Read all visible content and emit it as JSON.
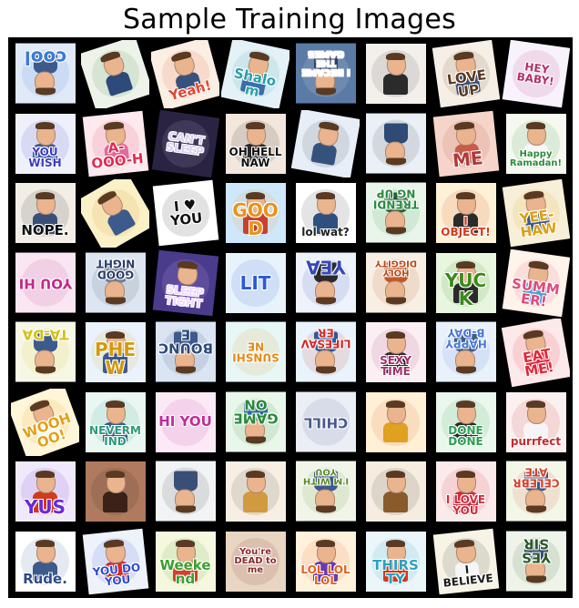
{
  "title": "Sample Training Images",
  "tiles": [
    {
      "text": "cool",
      "bg": "#dfe9f7",
      "fg": "#3b7bd6",
      "rot": 180,
      "fig": true,
      "fc": "#3d5a8c"
    },
    {
      "text": "",
      "bg": "#eef3ea",
      "fg": "#2a7a3a",
      "rot": -18,
      "fig": true,
      "fc": "#2c4a7a"
    },
    {
      "text": "Yeah!",
      "bg": "#fbeee2",
      "fg": "#e2472e",
      "rot": -15,
      "fig": true,
      "fc": "#39527d"
    },
    {
      "text": "Shalom",
      "bg": "#e4f1f6",
      "fg": "#2aa0a8",
      "rot": 12,
      "fig": true,
      "fc": "#3b6ea8"
    },
    {
      "text": "I BECAME THE GAMES",
      "bg": "#5b7aa6",
      "fg": "#ffffff",
      "rot": 180,
      "fig": true,
      "fc": "#2a3f60"
    },
    {
      "text": "",
      "bg": "#f3f0ec",
      "fg": "#333333",
      "rot": 0,
      "fig": true,
      "fc": "#2b2b2b"
    },
    {
      "text": "LOVE UP",
      "bg": "#f6efe5",
      "fg": "#5b3a20",
      "rot": -8,
      "fig": true,
      "fc": "#3a4f78"
    },
    {
      "text": "HEY BABY!",
      "bg": "#f7f2fb",
      "fg": "#b2316a",
      "rot": 8,
      "fig": false,
      "fc": "#ffffff"
    },
    {
      "text": "YOU WISH",
      "bg": "#eef1fb",
      "fg": "#3b3bc4",
      "rot": 0,
      "fig": true,
      "fc": "#3d5a8c"
    },
    {
      "text": "A-OOO-H",
      "bg": "#fde9ee",
      "fg": "#e12c52",
      "rot": -6,
      "fig": true,
      "fc": "#e06a9a"
    },
    {
      "text": "CAN'T SLEEP",
      "bg": "#2b2342",
      "fg": "#d9d2f2",
      "rot": 8,
      "fig": false,
      "fc": "#ffffff"
    },
    {
      "text": "OH HELL NAW",
      "bg": "#f3e6dc",
      "fg": "#111111",
      "rot": 0,
      "fig": true,
      "fc": "#2a2a2a"
    },
    {
      "text": "",
      "bg": "#e7eef7",
      "fg": "#333333",
      "rot": 10,
      "fig": true,
      "fc": "#35527c"
    },
    {
      "text": "",
      "bg": "#eaf0f6",
      "fg": "#333333",
      "rot": 180,
      "fig": true,
      "fc": "#2e4a75"
    },
    {
      "text": "ME",
      "bg": "#f5d5c9",
      "fg": "#b23a3a",
      "rot": -6,
      "fig": true,
      "fc": "#c85b4a"
    },
    {
      "text": "Happy Ramadan!",
      "bg": "#f4f8ef",
      "fg": "#2e8b3a",
      "rot": 0,
      "fig": true,
      "fc": "#f6f6f6"
    },
    {
      "text": "NOPE.",
      "bg": "#f2ede7",
      "fg": "#111111",
      "rot": 0,
      "fig": true,
      "fc": "#3a4f78"
    },
    {
      "text": "",
      "bg": "#fbf1c8",
      "fg": "#cc8a10",
      "rot": -30,
      "fig": true,
      "fc": "#3d5a8c"
    },
    {
      "text": "I ♥ YOU",
      "bg": "#ffffff",
      "fg": "#111111",
      "rot": -6,
      "fig": false,
      "fc": "#ffffff"
    },
    {
      "text": "GOOD",
      "bg": "#cfe7fa",
      "fg": "#e8931c",
      "rot": 0,
      "fig": true,
      "fc": "#c8402f"
    },
    {
      "text": "lol wat?",
      "bg": "#ffffff",
      "fg": "#222222",
      "rot": 0,
      "fig": true,
      "fc": "#2f4f7f"
    },
    {
      "text": "TRENDING UP",
      "bg": "#e9f5ea",
      "fg": "#2a8a40",
      "rot": 180,
      "fig": true,
      "fc": "#2a5a3a"
    },
    {
      "text": "I OBJECT!",
      "bg": "#fdf1d6",
      "fg": "#d23a1c",
      "rot": 0,
      "fig": true,
      "fc": "#2b2b2b"
    },
    {
      "text": "YEE-HAW",
      "bg": "#f7efd8",
      "fg": "#d8a012",
      "rot": -8,
      "fig": true,
      "fc": "#3d5a8c"
    },
    {
      "text": "YOU HI",
      "bg": "#f9e6f2",
      "fg": "#c12a86",
      "rot": 180,
      "fig": false,
      "fc": "#ffffff"
    },
    {
      "text": "GOOD NIGHT",
      "bg": "#dde6f0",
      "fg": "#2c3e66",
      "rot": 180,
      "fig": true,
      "fc": "#6a7a9a"
    },
    {
      "text": "SLEEP TIGHT",
      "bg": "#4a3b8c",
      "fg": "#f2d9ff",
      "rot": 6,
      "fig": true,
      "fc": "#6a4fbf"
    },
    {
      "text": "LIT",
      "bg": "#e8f2fb",
      "fg": "#2a5bd6",
      "rot": 0,
      "fig": false,
      "fc": "#ffffff"
    },
    {
      "text": "YEA",
      "bg": "#eef2fa",
      "fg": "#3548b8",
      "rot": 180,
      "fig": true,
      "fc": "#2a2a2a"
    },
    {
      "text": "HOLY DIGGITY",
      "bg": "#f8efe4",
      "fg": "#b64a1a",
      "rot": 180,
      "fig": true,
      "fc": "#c1582a"
    },
    {
      "text": "YUCK",
      "bg": "#e8f5df",
      "fg": "#3a8a1a",
      "rot": 0,
      "fig": true,
      "fc": "#2a2a2a"
    },
    {
      "text": "SUMMER!",
      "bg": "#fff3ea",
      "fg": "#e04a7a",
      "rot": 8,
      "fig": true,
      "fc": "#4aa0d6"
    },
    {
      "text": "TA-DA",
      "bg": "#f7f7e6",
      "fg": "#d2c21c",
      "rot": 180,
      "fig": true,
      "fc": "#3d5a8c"
    },
    {
      "text": "PHEW",
      "bg": "#eaf3fb",
      "fg": "#d29a10",
      "rot": 0,
      "fig": true,
      "fc": "#3d5a8c"
    },
    {
      "text": "BOUNCE",
      "bg": "#dbe4f2",
      "fg": "#2c4a7a",
      "rot": 180,
      "fig": true,
      "fc": "#3d5a8c"
    },
    {
      "text": "SUNSHINE",
      "bg": "#e6f7f6",
      "fg": "#e38b1c",
      "rot": 180,
      "fig": false,
      "fc": "#ffffff"
    },
    {
      "text": "LIFESAVER",
      "bg": "#e9f3fb",
      "fg": "#d42a2a",
      "rot": 180,
      "fig": true,
      "fc": "#2a5a9a"
    },
    {
      "text": "SEXY TIME",
      "bg": "#fbeff3",
      "fg": "#a3306a",
      "rot": 0,
      "fig": true,
      "fc": "#2a2a2a"
    },
    {
      "text": "HAPPY B-DAY",
      "bg": "#e9f1fb",
      "fg": "#4a7ad6",
      "rot": 180,
      "fig": true,
      "fc": "#3d5a8c"
    },
    {
      "text": "EAT ME!",
      "bg": "#fde9ea",
      "fg": "#e0283a",
      "rot": -10,
      "fig": true,
      "fc": "#e0283a"
    },
    {
      "text": "WOOHOO!",
      "bg": "#fff5d8",
      "fg": "#e4a012",
      "rot": -20,
      "fig": true,
      "fc": "#f5f5f5"
    },
    {
      "text": "NEVERMIND",
      "bg": "#eaf6f2",
      "fg": "#2a9a7a",
      "rot": 0,
      "fig": true,
      "fc": "#3d5a8c"
    },
    {
      "text": "HI YOU",
      "bg": "#fbeaf6",
      "fg": "#c22a9a",
      "rot": 0,
      "fig": false,
      "fc": "#ffffff"
    },
    {
      "text": "GAME ON",
      "bg": "#e9f6ea",
      "fg": "#2a8a3a",
      "rot": 180,
      "fig": true,
      "fc": "#2c6a9a"
    },
    {
      "text": "CHILL",
      "bg": "#ebeef5",
      "fg": "#4a5a8a",
      "rot": 180,
      "fig": false,
      "fc": "#ffffff"
    },
    {
      "text": "",
      "bg": "#fff0d6",
      "fg": "#d4551a",
      "rot": 0,
      "fig": true,
      "fc": "#e0a020"
    },
    {
      "text": "DONE DONE",
      "bg": "#eaf7ec",
      "fg": "#2aa050",
      "rot": 0,
      "fig": true,
      "fc": "#2a2a2a"
    },
    {
      "text": "purrfect",
      "bg": "#fbf0f0",
      "fg": "#c22a2a",
      "rot": 0,
      "fig": true,
      "fc": "#f5f5f5"
    },
    {
      "text": "YUS",
      "bg": "#efe9fb",
      "fg": "#6a2ad6",
      "rot": 0,
      "fig": true,
      "fc": "#d23a1a"
    },
    {
      "text": "",
      "bg": "#b07a5e",
      "fg": "#222222",
      "rot": 0,
      "fig": true,
      "fc": "#3a2218"
    },
    {
      "text": "",
      "bg": "#f2f3f5",
      "fg": "#333333",
      "rot": 180,
      "fig": true,
      "fc": "#3a4f78"
    },
    {
      "text": "",
      "bg": "#f7efe4",
      "fg": "#333333",
      "rot": 0,
      "fig": true,
      "fc": "#d29a40"
    },
    {
      "text": "I'M WITH YOU",
      "bg": "#f1f5e9",
      "fg": "#5a8a2a",
      "rot": 180,
      "fig": true,
      "fc": "#3d5a8c"
    },
    {
      "text": "",
      "bg": "#f6ece0",
      "fg": "#333333",
      "rot": 0,
      "fig": true,
      "fc": "#8a5a2a"
    },
    {
      "text": "I LOVE YOU",
      "bg": "#fbeaea",
      "fg": "#d42a3a",
      "rot": 0,
      "fig": true,
      "fc": "#d42a3a"
    },
    {
      "text": "CELEBRATE",
      "bg": "#f3f7e8",
      "fg": "#d2422a",
      "rot": 180,
      "fig": true,
      "fc": "#3d5a8c"
    },
    {
      "text": "Rude.",
      "bg": "#ffffff",
      "fg": "#2c4a8a",
      "rot": 0,
      "fig": true,
      "fc": "#3d5a8c"
    },
    {
      "text": "YOU DO YOU",
      "bg": "#eef2fb",
      "fg": "#2a4ad6",
      "rot": -6,
      "fig": true,
      "fc": "#d42a2a"
    },
    {
      "text": "Weekend",
      "bg": "#f6f7df",
      "fg": "#3aa02a",
      "rot": 0,
      "fig": true,
      "fc": "#d2422a"
    },
    {
      "text": "You're DEAD to me",
      "bg": "#e8d5c2",
      "fg": "#8a2a2a",
      "rot": 0,
      "fig": false,
      "fc": "#ffffff"
    },
    {
      "text": "LOL LOL LOL",
      "bg": "#fff1dc",
      "fg": "#e2601c",
      "rot": 0,
      "fig": true,
      "fc": "#6a3ab0"
    },
    {
      "text": "THIRSTY",
      "bg": "#eaf6fa",
      "fg": "#2aa0c2",
      "rot": 0,
      "fig": true,
      "fc": "#d23a1a"
    },
    {
      "text": "I BELIEVE",
      "bg": "#f7f4e6",
      "fg": "#1a1a1a",
      "rot": -6,
      "fig": true,
      "fc": "#f5f5f5"
    },
    {
      "text": "YES SIR",
      "bg": "#eef4ea",
      "fg": "#2a5a2a",
      "rot": 180,
      "fig": true,
      "fc": "#3a4f78"
    }
  ]
}
